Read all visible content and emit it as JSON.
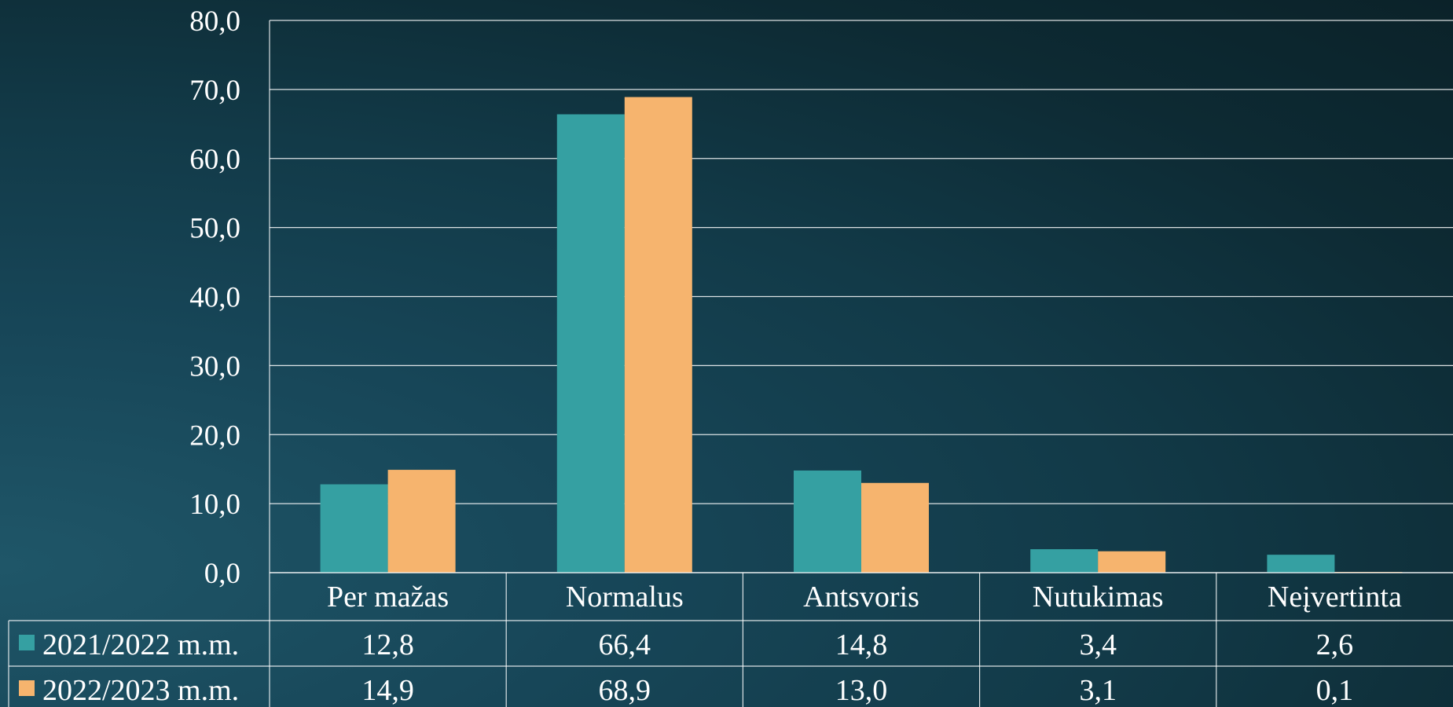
{
  "chart_data": {
    "type": "bar",
    "categories": [
      "Per mažas",
      "Normalus",
      "Antsvoris",
      "Nutukimas",
      "Neįvertinta"
    ],
    "series": [
      {
        "name": "2021/2022 m.m.",
        "values": [
          12.8,
          66.4,
          14.8,
          3.4,
          2.6
        ],
        "labels": [
          "12,8",
          "66,4",
          "14,8",
          "3,4",
          "2,6"
        ]
      },
      {
        "name": "2022/2023 m.m.",
        "values": [
          14.9,
          68.9,
          13.0,
          3.1,
          0.1
        ],
        "labels": [
          "14,9",
          "68,9",
          "13,0",
          "3,1",
          "0,1"
        ]
      }
    ],
    "ylim": [
      0,
      80
    ],
    "y_ticks": [
      "0,0",
      "10,0",
      "20,0",
      "30,0",
      "40,0",
      "50,0",
      "60,0",
      "70,0",
      "80,0"
    ],
    "grid": true,
    "legend": "data-table-left",
    "colors": [
      "#35a0a2",
      "#f6b46e"
    ]
  }
}
